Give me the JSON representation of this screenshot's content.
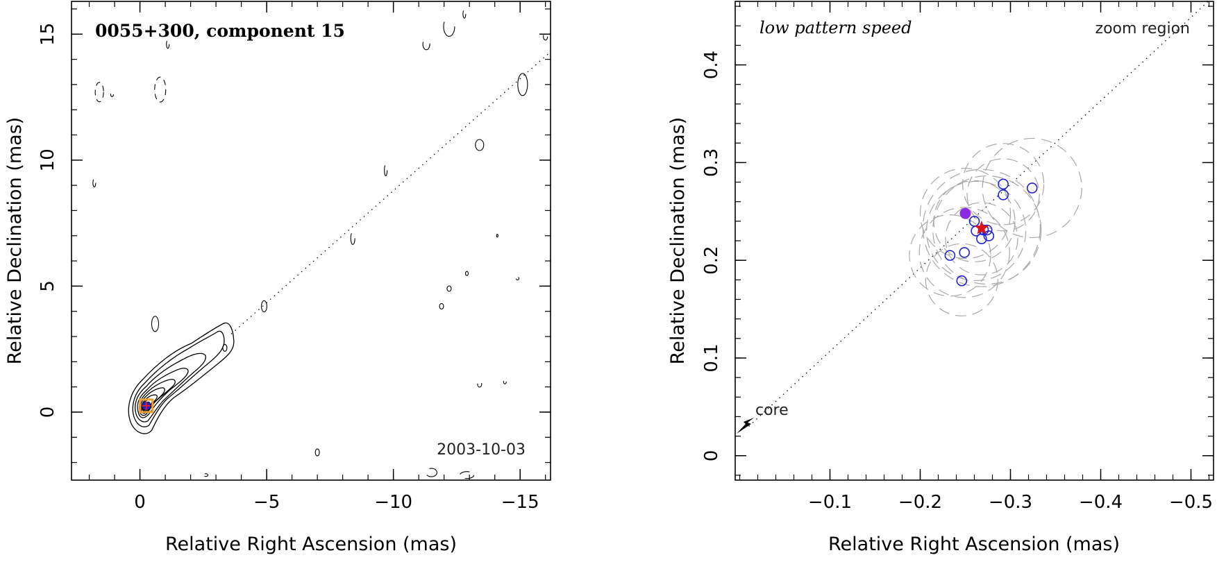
{
  "chart_data": [
    {
      "type": "contour",
      "title": "0055+300, component 15",
      "date": "2003-10-03",
      "xlabel": "Relative Right Ascension (mas)",
      "ylabel": "Relative Declination (mas)",
      "xlim": [
        2.7,
        -16.2
      ],
      "ylim": [
        -2.7,
        16.3
      ],
      "x_ticks": [
        0,
        -5,
        -10,
        -15
      ],
      "x_tick_labels": [
        "0",
        "−5",
        "−10",
        "−15"
      ],
      "y_ticks": [
        0,
        5,
        10,
        15
      ],
      "y_tick_labels": [
        "0",
        "5",
        "10",
        "15"
      ],
      "jet_axis": {
        "from": [
          0.25,
          0.2
        ],
        "to": [
          -16.2,
          14.3
        ],
        "style": "dotted"
      },
      "component": {
        "x": -0.25,
        "y": 0.25,
        "marker": "orange square with blue circle and red cross"
      },
      "contour_levels": 9,
      "grid": false,
      "colors": {
        "contours": "#000000",
        "marker_box": "#f0a030",
        "marker_circle": "#2020d0",
        "marker_cross": "#e02020"
      }
    },
    {
      "type": "scatter",
      "title": "low pattern speed",
      "annotation": "zoom region",
      "core_label": "core",
      "xlabel": "Relative Right Ascension (mas)",
      "ylabel": "Relative Declination (mas)",
      "xlim": [
        0.005,
        -0.525
      ],
      "ylim": [
        -0.025,
        0.465
      ],
      "x_ticks": [
        -0.1,
        -0.2,
        -0.3,
        -0.4,
        -0.5
      ],
      "x_tick_labels": [
        "−0.1",
        "−0.2",
        "−0.3",
        "−0.4",
        "−0.5"
      ],
      "y_ticks": [
        0,
        0.1,
        0.2,
        0.3,
        0.4
      ],
      "y_tick_labels": [
        "0",
        "0.1",
        "0.2",
        "0.3",
        "0.4"
      ],
      "jet_axis": {
        "from": [
          -0.01,
          0.03
        ],
        "to": [
          -0.525,
          0.47
        ],
        "style": "dotted"
      },
      "series": [
        {
          "marker": "open blue circle",
          "x": [
            -0.233,
            -0.249,
            -0.246,
            -0.26,
            -0.262,
            -0.268,
            -0.27,
            -0.274,
            -0.276,
            -0.292,
            -0.292,
            -0.324
          ],
          "y": [
            0.205,
            0.208,
            0.179,
            0.24,
            0.23,
            0.222,
            0.231,
            0.231,
            0.225,
            0.278,
            0.267,
            0.274
          ]
        },
        {
          "marker": "filled purple circle",
          "x": [
            -0.25
          ],
          "y": [
            0.248
          ]
        },
        {
          "marker": "red star",
          "x": [
            -0.268
          ],
          "y": [
            0.233
          ]
        }
      ],
      "uncertainty_circles": {
        "style": "dashed grey",
        "items": [
          {
            "x": -0.233,
            "y": 0.205,
            "r": 0.045
          },
          {
            "x": -0.249,
            "y": 0.208,
            "r": 0.05
          },
          {
            "x": -0.246,
            "y": 0.18,
            "r": 0.04
          },
          {
            "x": -0.26,
            "y": 0.24,
            "r": 0.045
          },
          {
            "x": -0.262,
            "y": 0.23,
            "r": 0.055
          },
          {
            "x": -0.268,
            "y": 0.222,
            "r": 0.04
          },
          {
            "x": -0.274,
            "y": 0.231,
            "r": 0.06
          },
          {
            "x": -0.292,
            "y": 0.278,
            "r": 0.045
          },
          {
            "x": -0.292,
            "y": 0.267,
            "r": 0.04
          },
          {
            "x": -0.324,
            "y": 0.274,
            "r": 0.055
          },
          {
            "x": -0.25,
            "y": 0.248,
            "r": 0.05
          },
          {
            "x": -0.268,
            "y": 0.233,
            "r": 0.065
          }
        ]
      },
      "grid": false,
      "colors": {
        "open_circles": "#2020d8",
        "filled_point": "#8a2be2",
        "star": "#e01010",
        "uncertainty": "#a8a8a8"
      }
    }
  ]
}
